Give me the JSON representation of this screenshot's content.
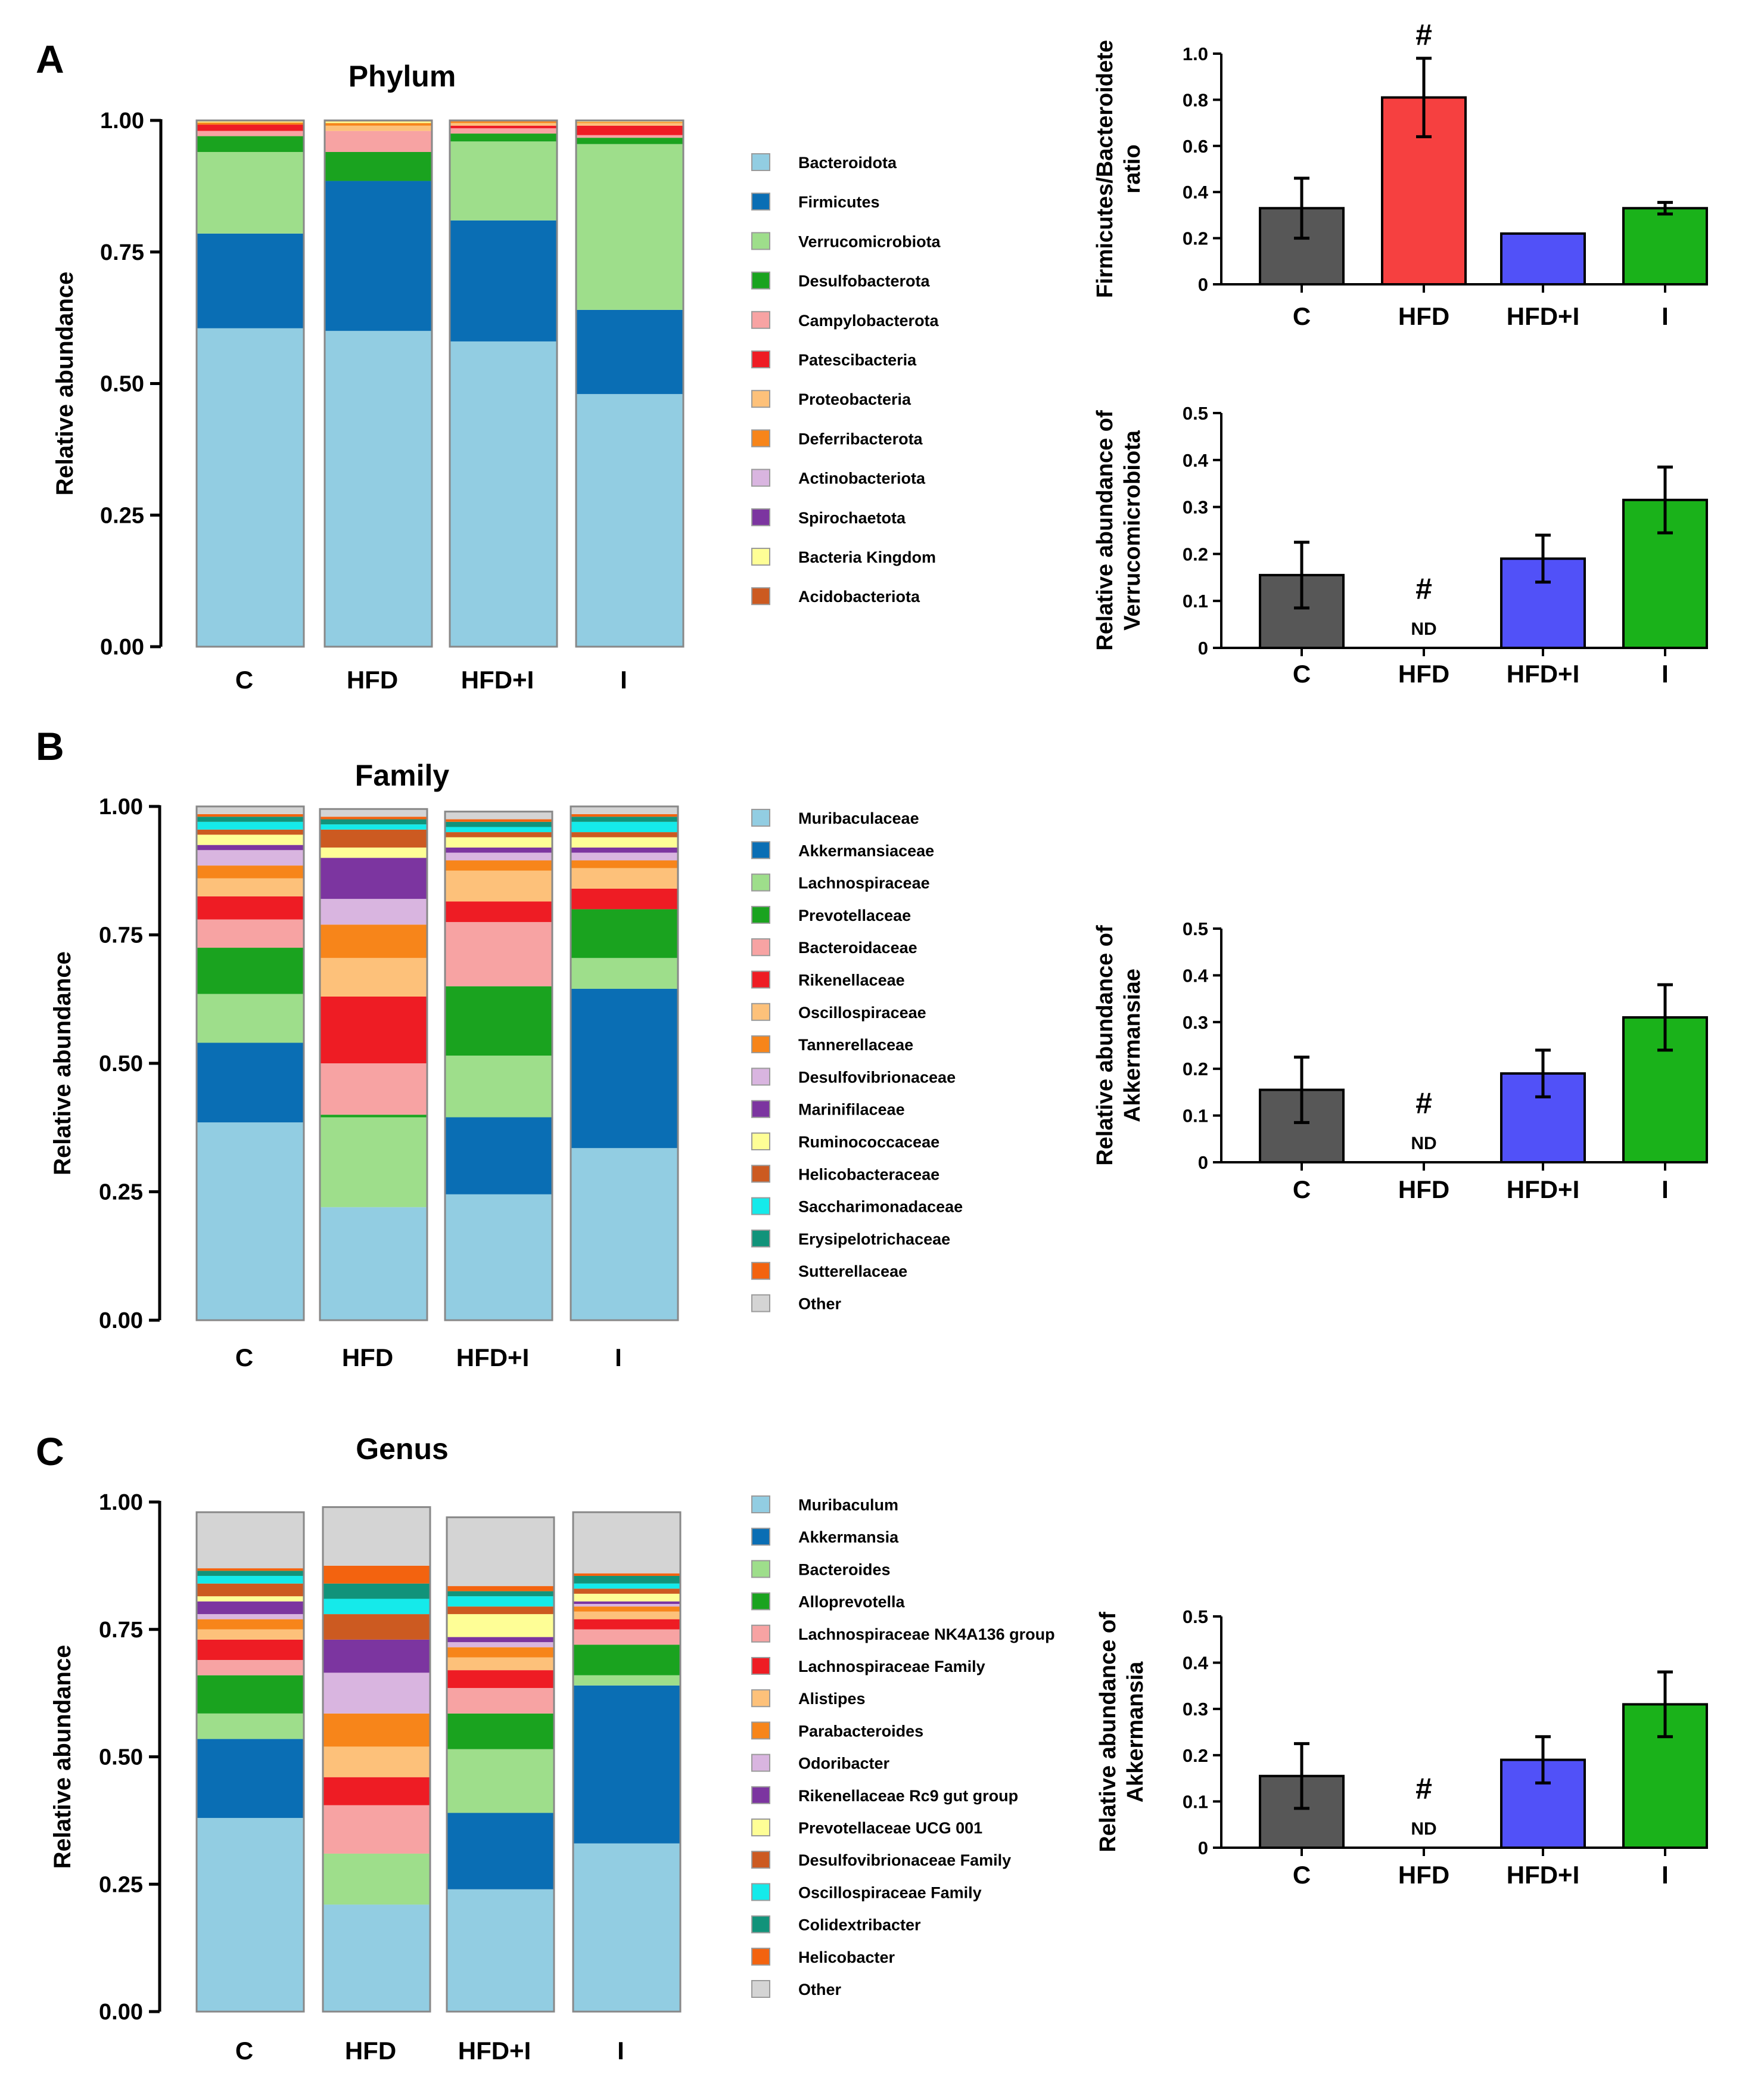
{
  "panels": {
    "a": "A",
    "b": "B",
    "c": "C"
  },
  "chart_data": [
    {
      "type": "bar",
      "stacked": true,
      "title": "Phylum",
      "xlabel": "",
      "ylabel": "Relative abundance",
      "ylim": [
        0,
        1
      ],
      "yticks": [
        "0.00",
        "0.25",
        "0.50",
        "0.75",
        "1.00"
      ],
      "categories": [
        "C",
        "HFD",
        "HFD+I",
        "I"
      ],
      "series": [
        {
          "name": "Bacteroidota",
          "color": "#92cde2",
          "values": [
            0.605,
            0.6,
            0.58,
            0.48
          ]
        },
        {
          "name": "Firmicutes",
          "color": "#0a6eb4",
          "values": [
            0.18,
            0.285,
            0.23,
            0.16
          ]
        },
        {
          "name": "Verrucomicrobiota",
          "color": "#9ede8b",
          "values": [
            0.155,
            0.0,
            0.15,
            0.315
          ]
        },
        {
          "name": "Desulfobacterota",
          "color": "#1aa31f",
          "values": [
            0.03,
            0.055,
            0.015,
            0.012
          ]
        },
        {
          "name": "Campylobacterota",
          "color": "#f7a3a3",
          "values": [
            0.01,
            0.04,
            0.01,
            0.005
          ]
        },
        {
          "name": "Patescibacteria",
          "color": "#ee1c24",
          "values": [
            0.012,
            0.0,
            0.005,
            0.018
          ]
        },
        {
          "name": "Proteobacteria",
          "color": "#fdc17a",
          "values": [
            0.0,
            0.01,
            0.005,
            0.005
          ]
        },
        {
          "name": "Deferribacterota",
          "color": "#f7851a",
          "values": [
            0.004,
            0.005,
            0.003,
            0.002
          ]
        },
        {
          "name": "Actinobacteriota",
          "color": "#d9b5e0",
          "values": [
            0.0,
            0.0,
            0.0,
            0.0
          ]
        },
        {
          "name": "Spirochaetota",
          "color": "#7c35a0",
          "values": [
            0.0,
            0.0,
            0.0,
            0.0
          ]
        },
        {
          "name": "Bacteria Kingdom",
          "color": "#fefe96",
          "values": [
            0.002,
            0.003,
            0.0,
            0.001
          ]
        },
        {
          "name": "Acidobacteriota",
          "color": "#cc5a21",
          "values": [
            0.002,
            0.002,
            0.002,
            0.002
          ]
        }
      ]
    },
    {
      "type": "bar",
      "stacked": true,
      "title": "Family",
      "xlabel": "",
      "ylabel": "Relative abundance",
      "ylim": [
        0,
        1
      ],
      "yticks": [
        "0.00",
        "0.25",
        "0.50",
        "0.75",
        "1.00"
      ],
      "categories": [
        "C",
        "HFD",
        "HFD+I",
        "I"
      ],
      "series": [
        {
          "name": "Muribaculaceae",
          "color": "#92cde2",
          "values": [
            0.385,
            0.22,
            0.245,
            0.335
          ]
        },
        {
          "name": "Akkermansiaceae",
          "color": "#0a6eb4",
          "values": [
            0.155,
            0.0,
            0.15,
            0.31
          ]
        },
        {
          "name": "Lachnospiraceae",
          "color": "#9ede8b",
          "values": [
            0.095,
            0.175,
            0.12,
            0.06
          ]
        },
        {
          "name": "Prevotellaceae",
          "color": "#1aa31f",
          "values": [
            0.09,
            0.005,
            0.135,
            0.095
          ]
        },
        {
          "name": "Bacteroidaceae",
          "color": "#f7a3a3",
          "values": [
            0.055,
            0.1,
            0.125,
            0.0
          ]
        },
        {
          "name": "Rikenellaceae",
          "color": "#ee1c24",
          "values": [
            0.045,
            0.13,
            0.04,
            0.04
          ]
        },
        {
          "name": "Oscillospiraceae",
          "color": "#fdc17a",
          "values": [
            0.035,
            0.075,
            0.06,
            0.04
          ]
        },
        {
          "name": "Tannerellaceae",
          "color": "#f7851a",
          "values": [
            0.025,
            0.065,
            0.02,
            0.015
          ]
        },
        {
          "name": "Desulfovibrionaceae",
          "color": "#d9b5e0",
          "values": [
            0.03,
            0.05,
            0.015,
            0.015
          ]
        },
        {
          "name": "Marinifilaceae",
          "color": "#7c35a0",
          "values": [
            0.01,
            0.08,
            0.01,
            0.01
          ]
        },
        {
          "name": "Ruminococcaceae",
          "color": "#fefe96",
          "values": [
            0.02,
            0.02,
            0.02,
            0.02
          ]
        },
        {
          "name": "Helicobacteraceae",
          "color": "#cc5a21",
          "values": [
            0.01,
            0.035,
            0.01,
            0.01
          ]
        },
        {
          "name": "Saccharimonadaceae",
          "color": "#15eaea",
          "values": [
            0.015,
            0.01,
            0.01,
            0.02
          ]
        },
        {
          "name": "Erysipelotrichaceae",
          "color": "#11937a",
          "values": [
            0.01,
            0.01,
            0.01,
            0.01
          ]
        },
        {
          "name": "Sutterellaceae",
          "color": "#f3630f",
          "values": [
            0.005,
            0.005,
            0.005,
            0.005
          ]
        },
        {
          "name": "Other",
          "color": "#d4d4d4",
          "values": [
            0.015,
            0.015,
            0.015,
            0.015
          ]
        }
      ]
    },
    {
      "type": "bar",
      "stacked": true,
      "title": "Genus",
      "xlabel": "",
      "ylabel": "Relative abundance",
      "ylim": [
        0,
        1
      ],
      "yticks": [
        "0.00",
        "0.25",
        "0.50",
        "0.75",
        "1.00"
      ],
      "categories": [
        "C",
        "HFD",
        "HFD+I",
        "I"
      ],
      "series": [
        {
          "name": "Muribaculum",
          "color": "#92cde2",
          "values": [
            0.38,
            0.21,
            0.24,
            0.33
          ]
        },
        {
          "name": "Akkermansia",
          "color": "#0a6eb4",
          "values": [
            0.155,
            0.0,
            0.15,
            0.31
          ]
        },
        {
          "name": "Bacteroides",
          "color": "#9ede8b",
          "values": [
            0.05,
            0.1,
            0.125,
            0.02
          ]
        },
        {
          "name": "Alloprevotella",
          "color": "#1aa31f",
          "values": [
            0.075,
            0.0,
            0.07,
            0.06
          ]
        },
        {
          "name": "Lachnospiraceae NK4A136 group",
          "color": "#f7a3a3",
          "values": [
            0.03,
            0.095,
            0.05,
            0.03
          ]
        },
        {
          "name": "Lachnospiraceae Family",
          "color": "#ee1c24",
          "values": [
            0.04,
            0.055,
            0.035,
            0.02
          ]
        },
        {
          "name": "Alistipes",
          "color": "#fdc17a",
          "values": [
            0.02,
            0.06,
            0.025,
            0.015
          ]
        },
        {
          "name": "Parabacteroides",
          "color": "#f7851a",
          "values": [
            0.02,
            0.065,
            0.02,
            0.01
          ]
        },
        {
          "name": "Odoribacter",
          "color": "#d9b5e0",
          "values": [
            0.01,
            0.08,
            0.01,
            0.005
          ]
        },
        {
          "name": "Rikenellaceae Rc9 gut group",
          "color": "#7c35a0",
          "values": [
            0.025,
            0.065,
            0.01,
            0.005
          ]
        },
        {
          "name": "Prevotellaceae UCG 001",
          "color": "#fefe96",
          "values": [
            0.01,
            0.0,
            0.045,
            0.015
          ]
        },
        {
          "name": "Desulfovibrionaceae Family",
          "color": "#cc5a21",
          "values": [
            0.025,
            0.05,
            0.015,
            0.01
          ]
        },
        {
          "name": "Oscillospiraceae Family",
          "color": "#15eaea",
          "values": [
            0.015,
            0.03,
            0.02,
            0.01
          ]
        },
        {
          "name": "Colidextribacter",
          "color": "#11937a",
          "values": [
            0.01,
            0.03,
            0.01,
            0.015
          ]
        },
        {
          "name": "Helicobacter",
          "color": "#f3630f",
          "values": [
            0.005,
            0.035,
            0.01,
            0.005
          ]
        },
        {
          "name": "Other",
          "color": "#d4d4d4",
          "values": [
            0.11,
            0.115,
            0.135,
            0.12
          ]
        }
      ]
    },
    {
      "type": "bar",
      "title": "",
      "xlabel": "",
      "ylabel_lines": [
        "Firmicutes/Bacteroidete",
        "ratio"
      ],
      "ylim": [
        0,
        1
      ],
      "yticks": [
        "0",
        "0.2",
        "0.4",
        "0.6",
        "0.8",
        "1.0"
      ],
      "categories": [
        "C",
        "HFD",
        "HFD+I",
        "I"
      ],
      "values": [
        0.33,
        0.81,
        0.22,
        0.33
      ],
      "errors": [
        0.13,
        0.17,
        0.0,
        0.025
      ],
      "colors": [
        "#575757",
        "#f64040",
        "#5151f8",
        "#1ab21a"
      ],
      "annotations": [
        null,
        {
          "mark": "#",
          "nd": null
        },
        null,
        null
      ]
    },
    {
      "type": "bar",
      "title": "",
      "xlabel": "",
      "ylabel_lines": [
        "Relative abundance of",
        "Verrucomicrobiota"
      ],
      "ylim": [
        0,
        0.5
      ],
      "yticks": [
        "0",
        "0.1",
        "0.2",
        "0.3",
        "0.4",
        "0.5"
      ],
      "categories": [
        "C",
        "HFD",
        "HFD+I",
        "I"
      ],
      "values": [
        0.155,
        0.0,
        0.19,
        0.315
      ],
      "errors": [
        0.07,
        0.0,
        0.05,
        0.07
      ],
      "colors": [
        "#575757",
        "#f64040",
        "#5151f8",
        "#1ab21a"
      ],
      "annotations": [
        null,
        {
          "mark": "#",
          "nd": "ND"
        },
        null,
        null
      ]
    },
    {
      "type": "bar",
      "title": "",
      "xlabel": "",
      "ylabel_lines": [
        "Relative abundance of",
        "Akkermansiae"
      ],
      "ylim": [
        0,
        0.5
      ],
      "yticks": [
        "0",
        "0.1",
        "0.2",
        "0.3",
        "0.4",
        "0.5"
      ],
      "categories": [
        "C",
        "HFD",
        "HFD+I",
        "I"
      ],
      "values": [
        0.155,
        0.0,
        0.19,
        0.31
      ],
      "errors": [
        0.07,
        0.0,
        0.05,
        0.07
      ],
      "colors": [
        "#575757",
        "#f64040",
        "#5151f8",
        "#1ab21a"
      ],
      "annotations": [
        null,
        {
          "mark": "#",
          "nd": "ND"
        },
        null,
        null
      ]
    },
    {
      "type": "bar",
      "title": "",
      "xlabel": "",
      "ylabel_lines": [
        "Relative abundance of",
        "Akkermansia"
      ],
      "ylim": [
        0,
        0.5
      ],
      "yticks": [
        "0",
        "0.1",
        "0.2",
        "0.3",
        "0.4",
        "0.5"
      ],
      "categories": [
        "C",
        "HFD",
        "HFD+I",
        "I"
      ],
      "values": [
        0.155,
        0.0,
        0.19,
        0.31
      ],
      "errors": [
        0.07,
        0.0,
        0.05,
        0.07
      ],
      "colors": [
        "#575757",
        "#f64040",
        "#5151f8",
        "#1ab21a"
      ],
      "annotations": [
        null,
        {
          "mark": "#",
          "nd": "ND"
        },
        null,
        null
      ]
    }
  ]
}
